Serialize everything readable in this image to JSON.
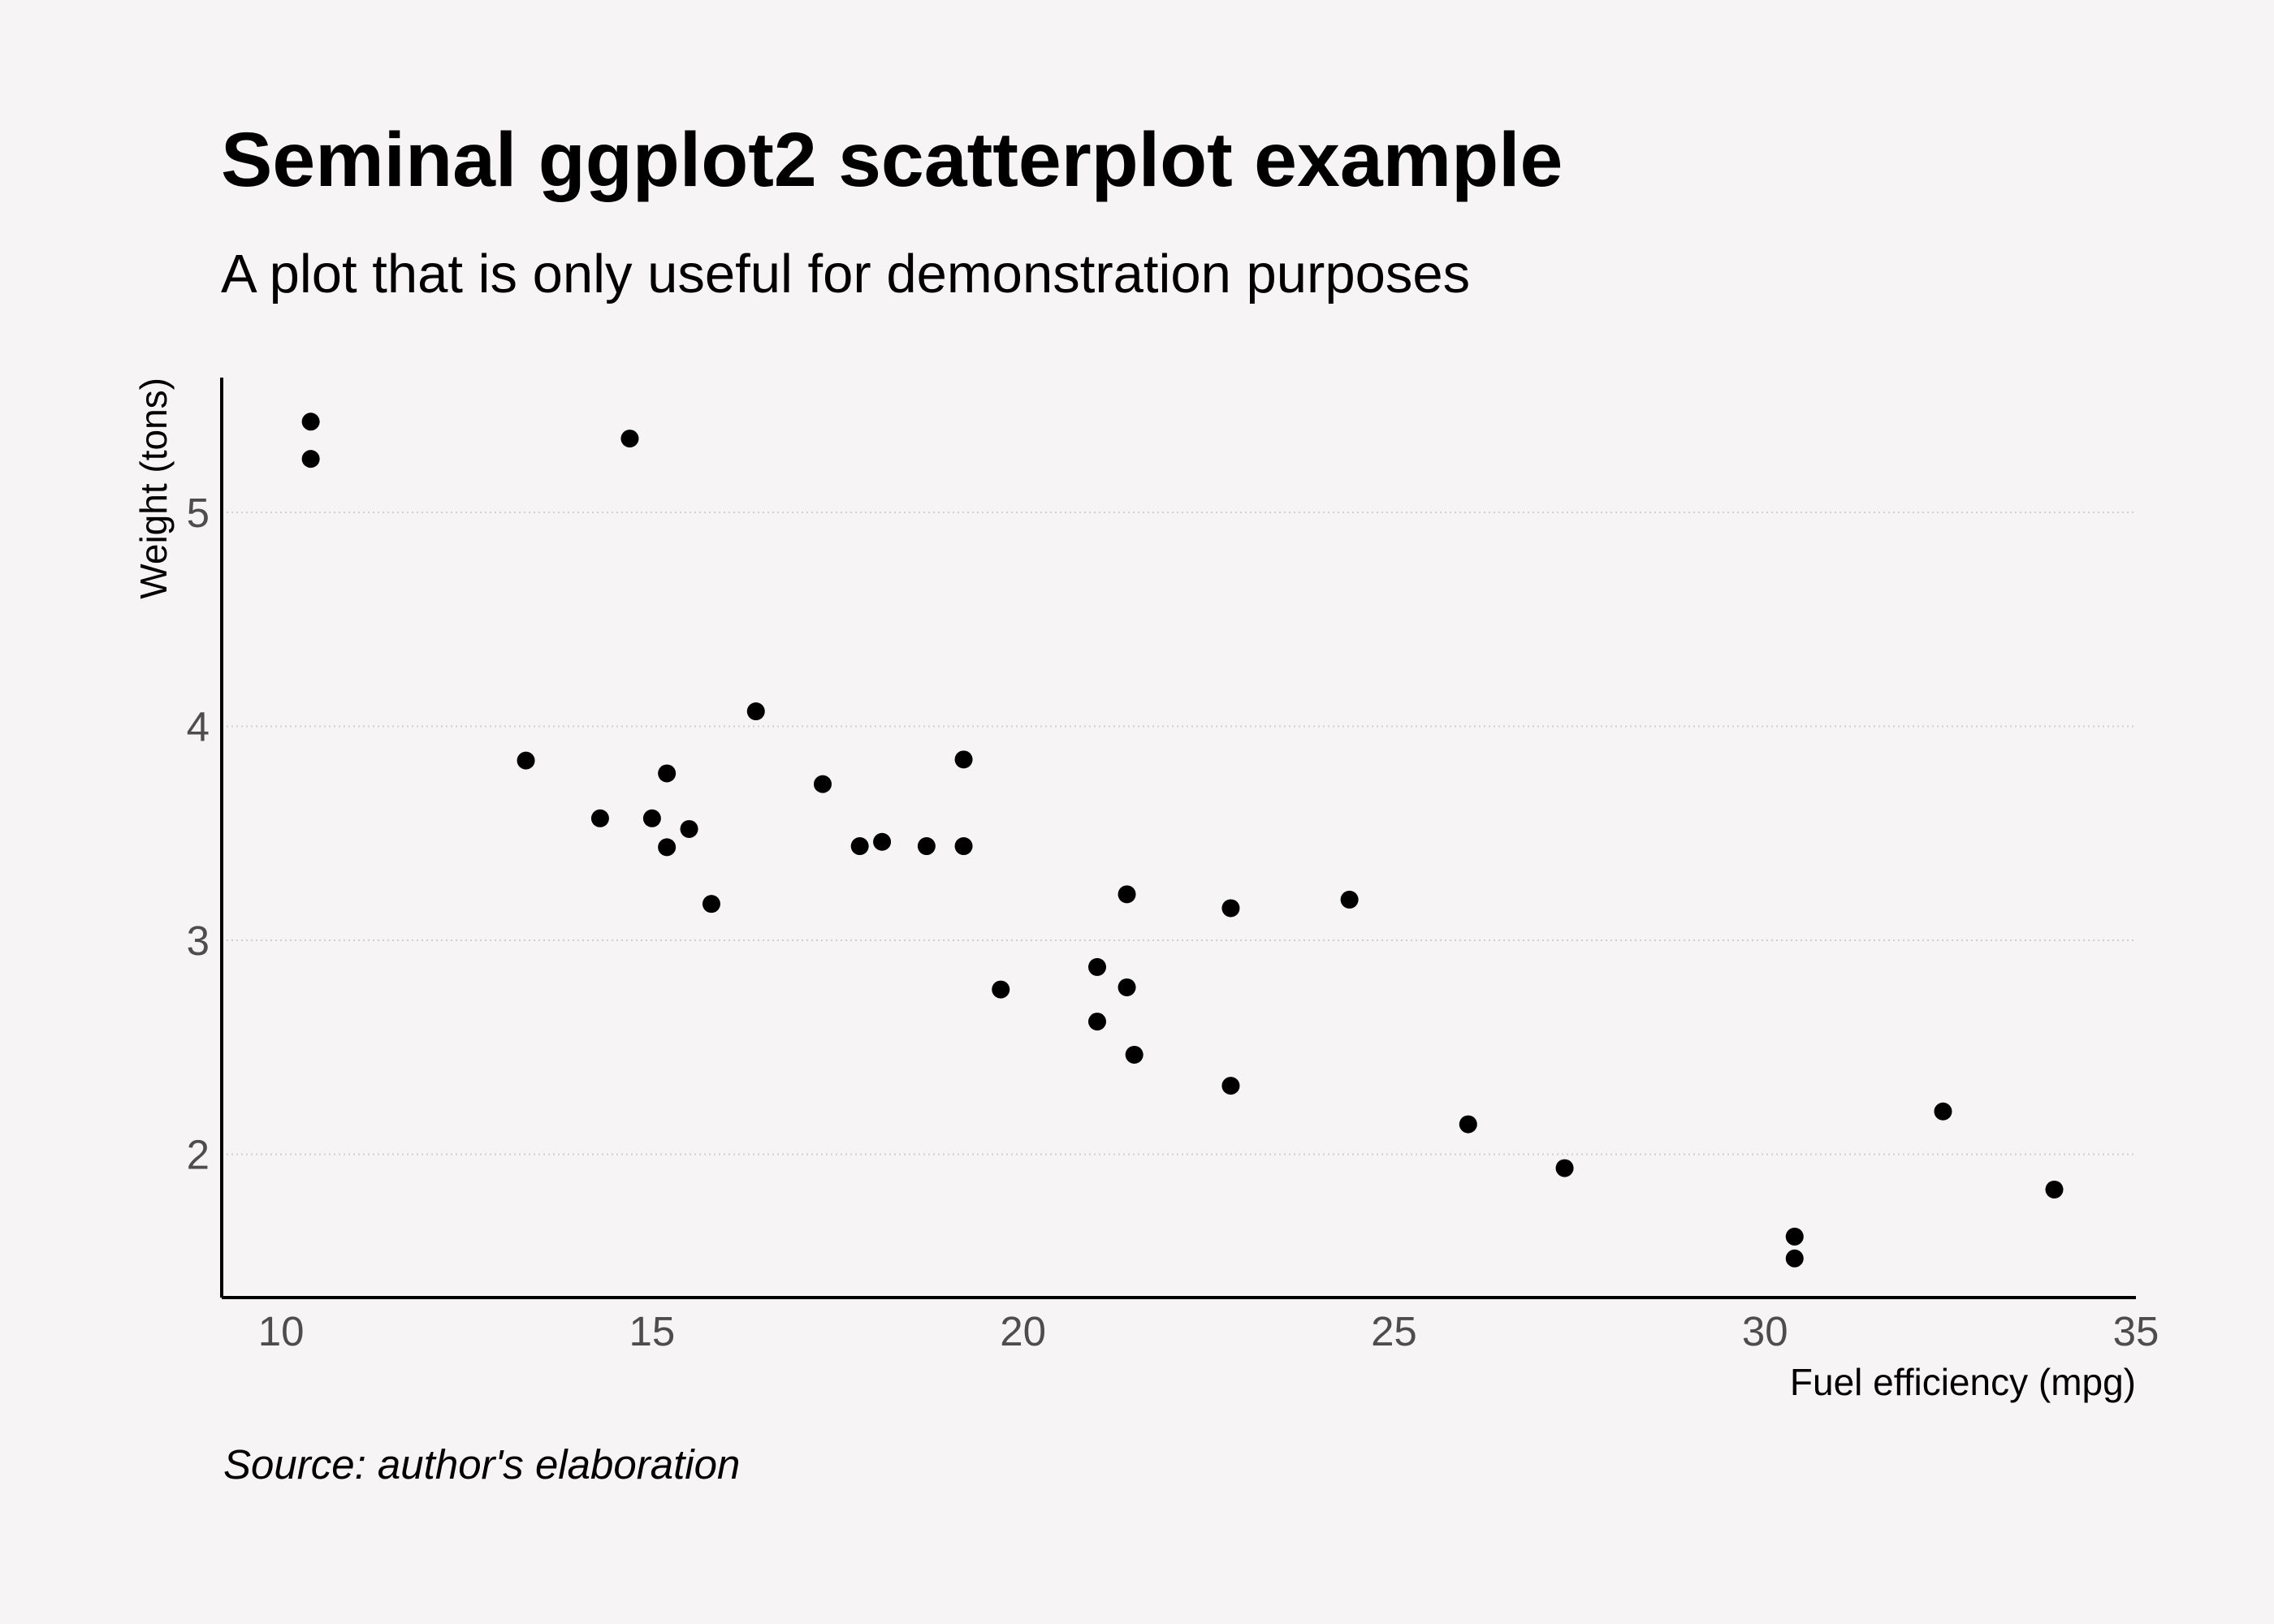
{
  "chart_data": {
    "type": "scatter",
    "title": "Seminal ggplot2 scatterplot example",
    "subtitle": "A plot that is only useful for demonstration purposes",
    "caption": "Source: author's elaboration",
    "xlabel": "Fuel efficiency (mpg)",
    "ylabel": "Weight (tons)",
    "xlim": [
      9.2,
      35.0
    ],
    "ylim": [
      1.33,
      5.63
    ],
    "x_ticks": [
      10,
      15,
      20,
      25,
      30,
      35
    ],
    "y_ticks": [
      2,
      3,
      4,
      5
    ],
    "grid": "horizontal major, dotted",
    "legend": "none",
    "point_color": "#000000",
    "grid_color": "#cfcfcf",
    "axis_color": "#000000",
    "tick_label_color": "#4d4d4d",
    "background": "#f6f4f4",
    "points": [
      {
        "x": 10.4,
        "y": 5.424
      },
      {
        "x": 10.4,
        "y": 5.25
      },
      {
        "x": 14.7,
        "y": 5.345
      },
      {
        "x": 13.3,
        "y": 3.84
      },
      {
        "x": 14.3,
        "y": 3.57
      },
      {
        "x": 15.0,
        "y": 3.57
      },
      {
        "x": 15.2,
        "y": 3.78
      },
      {
        "x": 15.2,
        "y": 3.435
      },
      {
        "x": 15.5,
        "y": 3.52
      },
      {
        "x": 15.8,
        "y": 3.17
      },
      {
        "x": 16.4,
        "y": 4.07
      },
      {
        "x": 17.3,
        "y": 3.73
      },
      {
        "x": 17.8,
        "y": 3.44
      },
      {
        "x": 18.1,
        "y": 3.46
      },
      {
        "x": 18.7,
        "y": 3.44
      },
      {
        "x": 19.2,
        "y": 3.44
      },
      {
        "x": 19.2,
        "y": 3.845
      },
      {
        "x": 19.7,
        "y": 2.77
      },
      {
        "x": 21.0,
        "y": 2.875
      },
      {
        "x": 21.0,
        "y": 2.62
      },
      {
        "x": 21.4,
        "y": 3.215
      },
      {
        "x": 21.4,
        "y": 2.78
      },
      {
        "x": 21.5,
        "y": 2.465
      },
      {
        "x": 22.8,
        "y": 3.15
      },
      {
        "x": 22.8,
        "y": 2.32
      },
      {
        "x": 24.4,
        "y": 3.19
      },
      {
        "x": 26.0,
        "y": 2.14
      },
      {
        "x": 27.3,
        "y": 1.935
      },
      {
        "x": 30.4,
        "y": 1.615
      },
      {
        "x": 30.4,
        "y": 1.513
      },
      {
        "x": 32.4,
        "y": 2.2
      },
      {
        "x": 33.9,
        "y": 1.835
      }
    ]
  }
}
